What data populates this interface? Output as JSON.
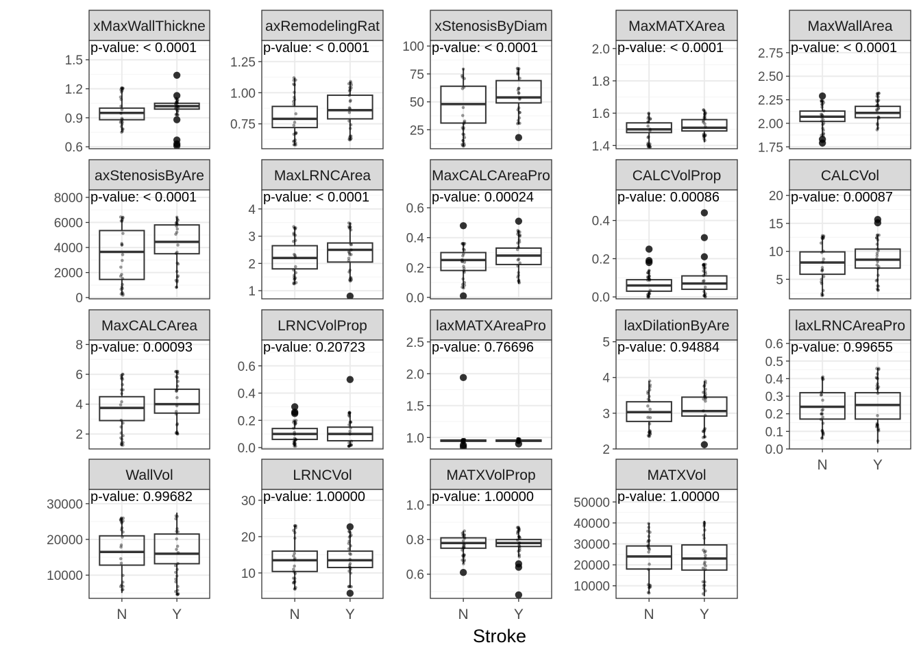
{
  "figure": {
    "xlabel": "Stroke"
  },
  "colors": {
    "strip": "#d9d9d9",
    "border": "#333333",
    "grid_major": "#ebebeb",
    "grid_minor": "#f5f5f5",
    "box": "#333333",
    "point": "#000000",
    "text": "#4d4d4d"
  },
  "chart_data": [
    {
      "type": "box",
      "title": "xMaxWallThickne",
      "pvalue": "p-value: < 0.0001",
      "categories": [
        "N",
        "Y"
      ],
      "ylim": [
        0.58,
        1.7
      ],
      "yticks": [
        0.6,
        0.9,
        1.2,
        1.5
      ],
      "ytick_labels": [
        "0.6",
        "0.9",
        "1.2",
        "1.5"
      ],
      "boxes": [
        {
          "q1": 0.88,
          "median": 0.95,
          "q3": 1.0,
          "lo": 0.75,
          "hi": 1.21,
          "outliers": []
        },
        {
          "q1": 0.99,
          "median": 1.02,
          "q3": 1.05,
          "lo": 0.93,
          "hi": 1.1,
          "outliers": [
            1.34,
            1.13,
            0.88,
            0.67,
            0.63,
            0.61
          ]
        }
      ]
    },
    {
      "type": "box",
      "title": "axRemodelingRat",
      "pvalue": "p-value: < 0.0001",
      "categories": [
        "N",
        "Y"
      ],
      "ylim": [
        0.55,
        1.42
      ],
      "yticks": [
        0.75,
        1.0,
        1.25
      ],
      "ytick_labels": [
        "0.75",
        "1.00",
        "1.25"
      ],
      "boxes": [
        {
          "q1": 0.72,
          "median": 0.79,
          "q3": 0.89,
          "lo": 0.58,
          "hi": 1.12,
          "outliers": []
        },
        {
          "q1": 0.79,
          "median": 0.86,
          "q3": 0.98,
          "lo": 0.62,
          "hi": 1.09,
          "outliers": []
        }
      ]
    },
    {
      "type": "box",
      "title": "xStenosisByDiam",
      "pvalue": "p-value: < 0.0001",
      "categories": [
        "N",
        "Y"
      ],
      "ylim": [
        8,
        105
      ],
      "yticks": [
        25,
        50,
        75,
        100
      ],
      "ytick_labels": [
        "25",
        "50",
        "75",
        "100"
      ],
      "boxes": [
        {
          "q1": 31,
          "median": 48,
          "q3": 64,
          "lo": 10,
          "hi": 80,
          "outliers": []
        },
        {
          "q1": 49,
          "median": 54,
          "q3": 69,
          "lo": 30,
          "hi": 80,
          "outliers": [
            18
          ]
        }
      ]
    },
    {
      "type": "box",
      "title": "MaxMATXArea",
      "pvalue": "p-value: < 0.0001",
      "categories": [
        "N",
        "Y"
      ],
      "ylim": [
        1.38,
        2.05
      ],
      "yticks": [
        1.4,
        1.6,
        1.8,
        2.0
      ],
      "ytick_labels": [
        "1.4",
        "1.6",
        "1.8",
        "2.0"
      ],
      "boxes": [
        {
          "q1": 1.48,
          "median": 1.5,
          "q3": 1.54,
          "lo": 1.39,
          "hi": 1.6,
          "outliers": []
        },
        {
          "q1": 1.49,
          "median": 1.51,
          "q3": 1.56,
          "lo": 1.42,
          "hi": 1.62,
          "outliers": []
        }
      ]
    },
    {
      "type": "box",
      "title": "MaxWallArea",
      "pvalue": "p-value: < 0.0001",
      "categories": [
        "N",
        "Y"
      ],
      "ylim": [
        1.73,
        2.88
      ],
      "yticks": [
        1.75,
        2.0,
        2.25,
        2.5,
        2.75
      ],
      "ytick_labels": [
        "1.75",
        "2.00",
        "2.25",
        "2.50",
        "2.75"
      ],
      "boxes": [
        {
          "q1": 2.02,
          "median": 2.07,
          "q3": 2.13,
          "lo": 1.86,
          "hi": 2.24,
          "outliers": [
            2.29,
            1.83,
            1.79
          ]
        },
        {
          "q1": 2.06,
          "median": 2.11,
          "q3": 2.18,
          "lo": 1.93,
          "hi": 2.32,
          "outliers": []
        }
      ]
    },
    {
      "type": "box",
      "title": "axStenosisByAre",
      "pvalue": "p-value: < 0.0001",
      "categories": [
        "N",
        "Y"
      ],
      "ylim": [
        -100,
        8600
      ],
      "yticks": [
        0,
        2000,
        4000,
        6000,
        8000
      ],
      "ytick_labels": [
        "0",
        "2000",
        "4000",
        "6000",
        "8000"
      ],
      "boxes": [
        {
          "q1": 1450,
          "median": 3650,
          "q3": 5350,
          "lo": 200,
          "hi": 6450,
          "outliers": []
        },
        {
          "q1": 3500,
          "median": 4450,
          "q3": 5800,
          "lo": 750,
          "hi": 6450,
          "outliers": []
        }
      ]
    },
    {
      "type": "box",
      "title": "MaxLRNCArea",
      "pvalue": "p-value: < 0.0001",
      "categories": [
        "N",
        "Y"
      ],
      "ylim": [
        0.7,
        4.7
      ],
      "yticks": [
        1,
        2,
        3,
        4
      ],
      "ytick_labels": [
        "1",
        "2",
        "3",
        "4"
      ],
      "boxes": [
        {
          "q1": 1.8,
          "median": 2.2,
          "q3": 2.65,
          "lo": 1.25,
          "hi": 3.35,
          "outliers": []
        },
        {
          "q1": 2.05,
          "median": 2.5,
          "q3": 2.75,
          "lo": 1.35,
          "hi": 3.5,
          "outliers": [
            0.8
          ]
        }
      ]
    },
    {
      "type": "box",
      "title": "MaxCALCAreaPro",
      "pvalue": "p-value: 0.00024",
      "categories": [
        "N",
        "Y"
      ],
      "ylim": [
        -0.01,
        0.72
      ],
      "yticks": [
        0.0,
        0.2,
        0.4,
        0.6
      ],
      "ytick_labels": [
        "0.0",
        "0.2",
        "0.4",
        "0.6"
      ],
      "boxes": [
        {
          "q1": 0.18,
          "median": 0.25,
          "q3": 0.3,
          "lo": 0.06,
          "hi": 0.36,
          "outliers": [
            0.48,
            0.01
          ]
        },
        {
          "q1": 0.22,
          "median": 0.28,
          "q3": 0.33,
          "lo": 0.09,
          "hi": 0.45,
          "outliers": [
            0.51
          ]
        }
      ]
    },
    {
      "type": "box",
      "title": "CALCVolProp",
      "pvalue": "p-value: 0.00086",
      "categories": [
        "N",
        "Y"
      ],
      "ylim": [
        -0.01,
        0.56
      ],
      "yticks": [
        0.0,
        0.2,
        0.4
      ],
      "ytick_labels": [
        "0.0",
        "0.2",
        "0.4"
      ],
      "boxes": [
        {
          "q1": 0.03,
          "median": 0.06,
          "q3": 0.09,
          "lo": 0.0,
          "hi": 0.14,
          "outliers": [
            0.25,
            0.19,
            0.18
          ]
        },
        {
          "q1": 0.04,
          "median": 0.07,
          "q3": 0.11,
          "lo": 0.0,
          "hi": 0.17,
          "outliers": [
            0.44,
            0.31,
            0.21
          ]
        }
      ]
    },
    {
      "type": "box",
      "title": "CALCVol",
      "pvalue": "p-value: 0.00087",
      "categories": [
        "N",
        "Y"
      ],
      "ylim": [
        1.5,
        21
      ],
      "yticks": [
        5,
        10,
        15,
        20
      ],
      "ytick_labels": [
        "5",
        "10",
        "15",
        "20"
      ],
      "boxes": [
        {
          "q1": 5.9,
          "median": 8,
          "q3": 9.9,
          "lo": 2,
          "hi": 12.8,
          "outliers": []
        },
        {
          "q1": 7,
          "median": 8.5,
          "q3": 10.4,
          "lo": 3,
          "hi": 12.9,
          "outliers": [
            15.7,
            15.1
          ]
        }
      ]
    },
    {
      "type": "box",
      "title": "MaxCALCArea",
      "pvalue": "p-value: 0.00093",
      "categories": [
        "N",
        "Y"
      ],
      "ylim": [
        1.0,
        8.3
      ],
      "yticks": [
        2,
        4,
        6,
        8
      ],
      "ytick_labels": [
        "2",
        "4",
        "6",
        "8"
      ],
      "boxes": [
        {
          "q1": 2.9,
          "median": 3.75,
          "q3": 4.5,
          "lo": 1.2,
          "hi": 6.0,
          "outliers": []
        },
        {
          "q1": 3.4,
          "median": 4.0,
          "q3": 5.0,
          "lo": 2.0,
          "hi": 6.2,
          "outliers": []
        }
      ]
    },
    {
      "type": "box",
      "title": "LRNCVolProp",
      "pvalue": "p-value: 0.20723",
      "categories": [
        "N",
        "Y"
      ],
      "ylim": [
        -0.01,
        0.79
      ],
      "yticks": [
        0.0,
        0.2,
        0.4,
        0.6
      ],
      "ytick_labels": [
        "0.0",
        "0.2",
        "0.4",
        "0.6"
      ],
      "boxes": [
        {
          "q1": 0.06,
          "median": 0.1,
          "q3": 0.14,
          "lo": 0.01,
          "hi": 0.2,
          "outliers": [
            0.3,
            0.26,
            0.25
          ]
        },
        {
          "q1": 0.05,
          "median": 0.1,
          "q3": 0.15,
          "lo": 0.01,
          "hi": 0.26,
          "outliers": [
            0.5
          ]
        }
      ]
    },
    {
      "type": "box",
      "title": "laxMATXAreaPro",
      "pvalue": "p-value: 0.76696",
      "categories": [
        "N",
        "Y"
      ],
      "ylim": [
        0.82,
        2.53
      ],
      "yticks": [
        1.0,
        1.5,
        2.0,
        2.5
      ],
      "ytick_labels": [
        "1.0",
        "1.5",
        "2.0",
        "2.5"
      ],
      "boxes": [
        {
          "q1": 0.94,
          "median": 0.95,
          "q3": 0.96,
          "lo": 0.92,
          "hi": 0.97,
          "outliers": [
            1.94,
            0.88,
            0.85
          ]
        },
        {
          "q1": 0.94,
          "median": 0.95,
          "q3": 0.96,
          "lo": 0.92,
          "hi": 0.98,
          "outliers": [
            0.9
          ]
        }
      ]
    },
    {
      "type": "box",
      "title": "laxDilationByAre",
      "pvalue": "p-value: 0.94884",
      "categories": [
        "N",
        "Y"
      ],
      "ylim": [
        2.0,
        5.05
      ],
      "yticks": [
        2,
        3,
        4,
        5
      ],
      "ytick_labels": [
        "2",
        "3",
        "4",
        "5"
      ],
      "boxes": [
        {
          "q1": 2.77,
          "median": 3.03,
          "q3": 3.32,
          "lo": 2.35,
          "hi": 3.9,
          "outliers": []
        },
        {
          "q1": 2.92,
          "median": 3.06,
          "q3": 3.45,
          "lo": 2.3,
          "hi": 3.9,
          "outliers": [
            2.12
          ]
        }
      ]
    },
    {
      "type": "box",
      "title": "laxLRNCAreaPro",
      "pvalue": "p-value: 0.99655",
      "categories": [
        "N",
        "Y"
      ],
      "ylim": [
        0.0,
        0.62
      ],
      "yticks": [
        0.0,
        0.1,
        0.2,
        0.3,
        0.4,
        0.5,
        0.6
      ],
      "ytick_labels": [
        "0.0",
        "0.1",
        "0.2",
        "0.3",
        "0.4",
        "0.5",
        "0.6"
      ],
      "boxes": [
        {
          "q1": 0.17,
          "median": 0.24,
          "q3": 0.32,
          "lo": 0.06,
          "hi": 0.41,
          "outliers": []
        },
        {
          "q1": 0.17,
          "median": 0.25,
          "q3": 0.32,
          "lo": 0.03,
          "hi": 0.46,
          "outliers": []
        }
      ]
    },
    {
      "type": "box",
      "title": "WallVol",
      "pvalue": "p-value: 0.99682",
      "categories": [
        "N",
        "Y"
      ],
      "ylim": [
        3500,
        34000
      ],
      "yticks": [
        10000,
        20000,
        30000
      ],
      "ytick_labels": [
        "10000",
        "20000",
        "30000"
      ],
      "boxes": [
        {
          "q1": 12800,
          "median": 16500,
          "q3": 21000,
          "lo": 5000,
          "hi": 26000,
          "outliers": []
        },
        {
          "q1": 13200,
          "median": 16000,
          "q3": 21500,
          "lo": 4500,
          "hi": 27500,
          "outliers": []
        }
      ]
    },
    {
      "type": "box",
      "title": "LRNCVol",
      "pvalue": "p-value: 1.00000",
      "categories": [
        "N",
        "Y"
      ],
      "ylim": [
        3,
        33
      ],
      "yticks": [
        10,
        20,
        30
      ],
      "ytick_labels": [
        "10",
        "20",
        "30"
      ],
      "boxes": [
        {
          "q1": 10.4,
          "median": 13.5,
          "q3": 16,
          "lo": 5.5,
          "hi": 23,
          "outliers": []
        },
        {
          "q1": 11.5,
          "median": 13.5,
          "q3": 16,
          "lo": 6,
          "hi": 21.5,
          "outliers": [
            22.7,
            4.4
          ]
        }
      ]
    },
    {
      "type": "box",
      "title": "MATXVolProp",
      "pvalue": "p-value: 1.00000",
      "categories": [
        "N",
        "Y"
      ],
      "ylim": [
        0.46,
        1.09
      ],
      "yticks": [
        0.6,
        0.8,
        1.0
      ],
      "ytick_labels": [
        "0.6",
        "0.8",
        "1.0"
      ],
      "boxes": [
        {
          "q1": 0.75,
          "median": 0.78,
          "q3": 0.81,
          "lo": 0.66,
          "hi": 0.85,
          "outliers": [
            0.61
          ]
        },
        {
          "q1": 0.76,
          "median": 0.78,
          "q3": 0.8,
          "lo": 0.7,
          "hi": 0.87,
          "outliers": [
            0.66,
            0.64,
            0.48
          ]
        }
      ]
    },
    {
      "type": "box",
      "title": "MATXVol",
      "pvalue": "p-value: 1.00000",
      "categories": [
        "N",
        "Y"
      ],
      "ylim": [
        4000,
        56000
      ],
      "yticks": [
        10000,
        20000,
        30000,
        40000,
        50000
      ],
      "ytick_labels": [
        "10000",
        "20000",
        "30000",
        "40000",
        "50000"
      ],
      "boxes": [
        {
          "q1": 18000,
          "median": 24000,
          "q3": 29000,
          "lo": 6500,
          "hi": 40000,
          "outliers": []
        },
        {
          "q1": 17500,
          "median": 23000,
          "q3": 29500,
          "lo": 5000,
          "hi": 41000,
          "outliers": []
        }
      ]
    }
  ]
}
